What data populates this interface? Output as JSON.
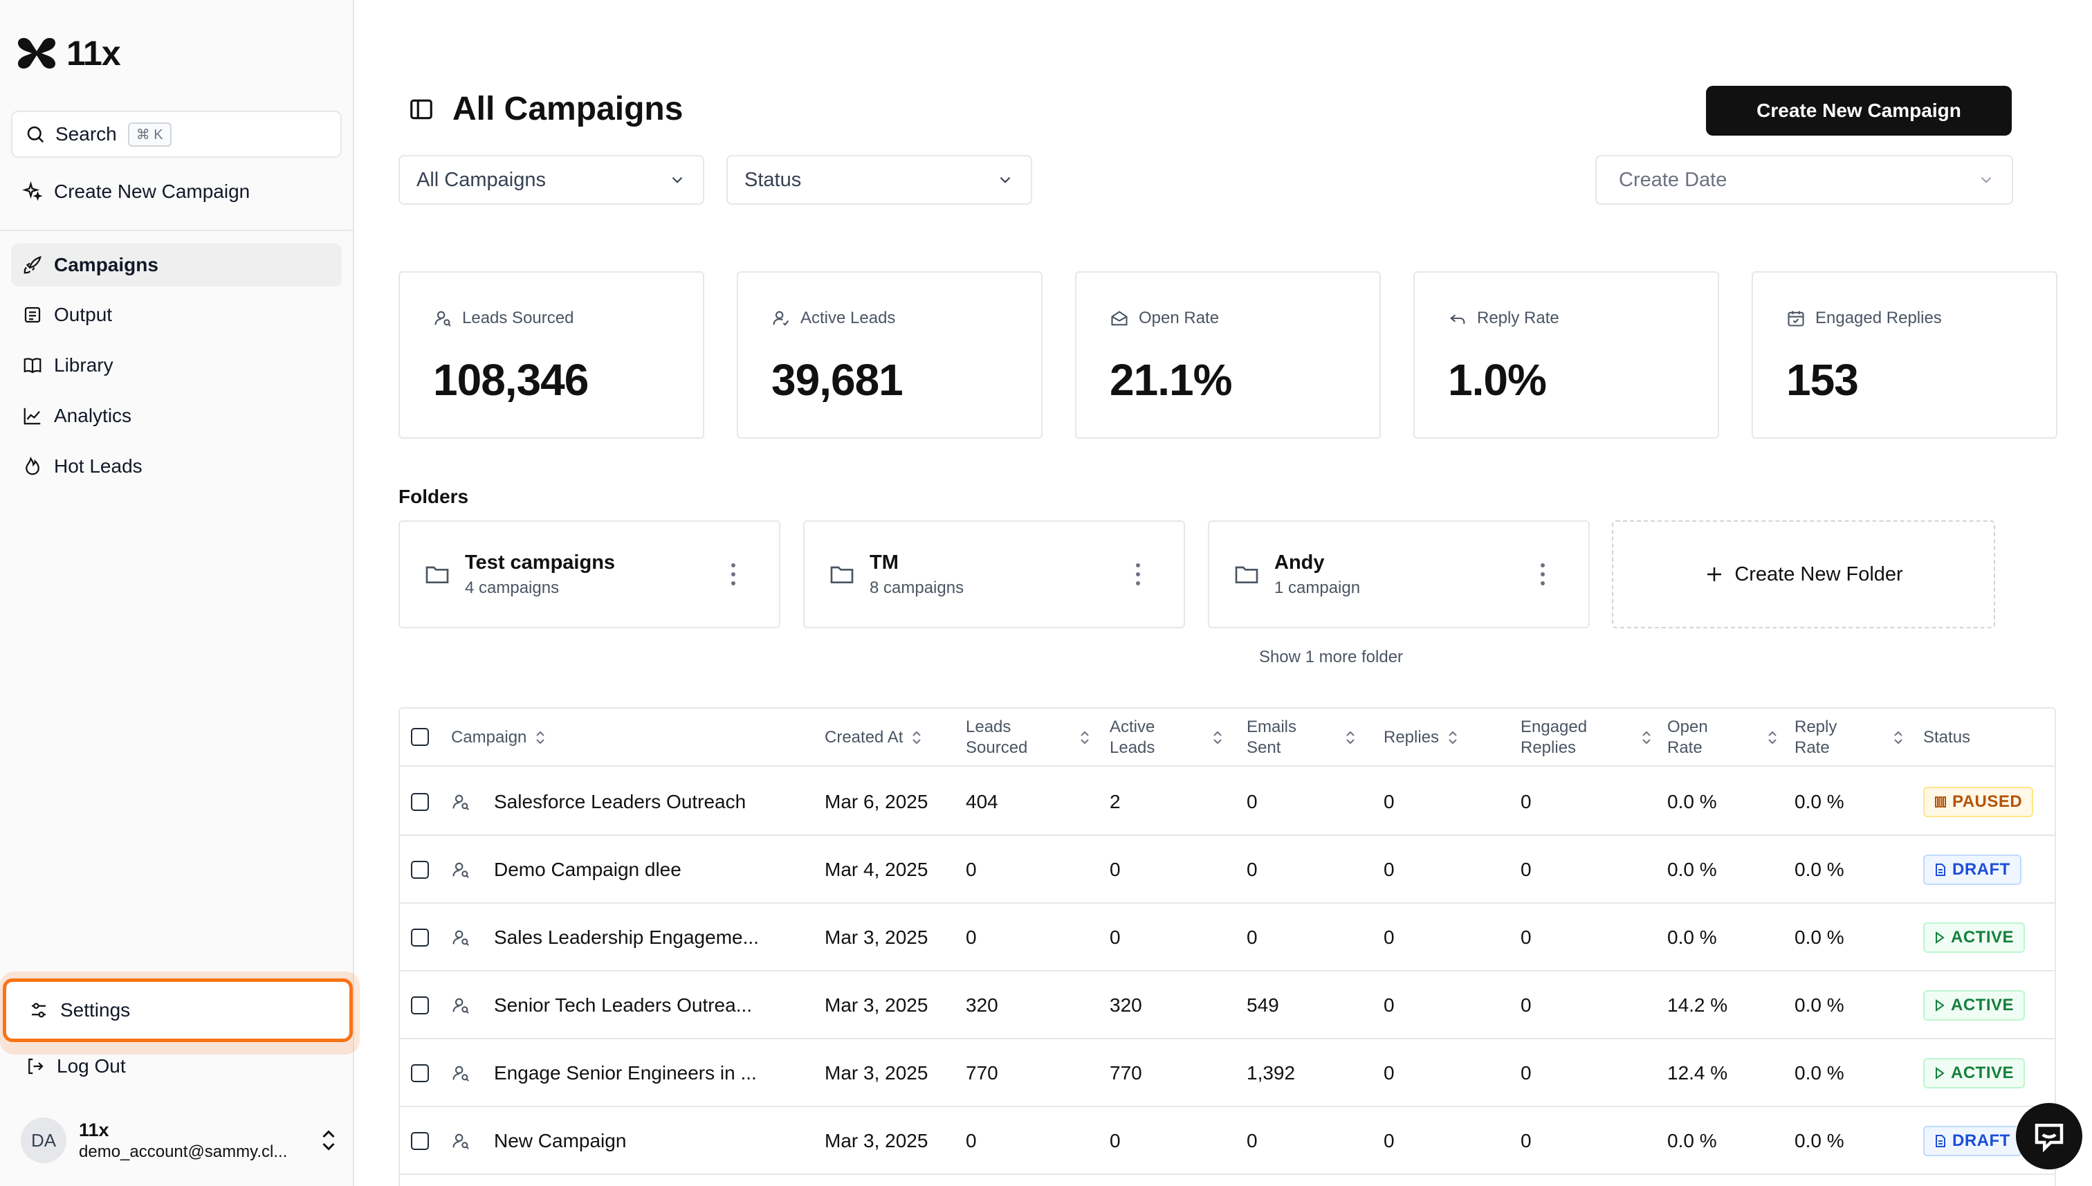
{
  "app": {
    "brand": "11x"
  },
  "sidebar": {
    "search_label": "Search",
    "search_shortcut": "⌘ K",
    "create_campaign": "Create New Campaign",
    "nav": [
      {
        "label": "Campaigns",
        "icon": "rocket-icon",
        "active": true
      },
      {
        "label": "Output",
        "icon": "document-icon"
      },
      {
        "label": "Library",
        "icon": "book-icon"
      },
      {
        "label": "Analytics",
        "icon": "line-chart-icon"
      },
      {
        "label": "Hot Leads",
        "icon": "flame-icon"
      }
    ],
    "settings": "Settings",
    "logout": "Log Out",
    "user": {
      "initials": "DA",
      "name": "11x",
      "email": "demo_account@sammy.cl..."
    }
  },
  "header": {
    "title": "All Campaigns",
    "create_button": "Create New Campaign",
    "filters": {
      "campaigns": "All Campaigns",
      "status": "Status",
      "date": "Create Date"
    }
  },
  "stats": [
    {
      "label": "Leads Sourced",
      "value": "108,346",
      "icon": "user-search-icon"
    },
    {
      "label": "Active Leads",
      "value": "39,681",
      "icon": "user-check-icon"
    },
    {
      "label": "Open Rate",
      "value": "21.1%",
      "icon": "mail-open-icon"
    },
    {
      "label": "Reply Rate",
      "value": "1.0%",
      "icon": "reply-icon"
    },
    {
      "label": "Engaged Replies",
      "value": "153",
      "icon": "calendar-check-icon"
    }
  ],
  "folders": {
    "title": "Folders",
    "items": [
      {
        "name": "Test campaigns",
        "count": "4 campaigns"
      },
      {
        "name": "TM",
        "count": "8 campaigns"
      },
      {
        "name": "Andy",
        "count": "1 campaign"
      }
    ],
    "create_label": "Create New Folder",
    "show_more": "Show 1 more folder"
  },
  "table": {
    "columns": {
      "campaign": "Campaign",
      "created_at": "Created At",
      "leads_sourced": [
        "Leads",
        "Sourced"
      ],
      "active_leads": [
        "Active",
        "Leads"
      ],
      "emails_sent": [
        "Emails",
        "Sent"
      ],
      "replies": "Replies",
      "engaged_replies": [
        "Engaged",
        "Replies"
      ],
      "open_rate": [
        "Open",
        "Rate"
      ],
      "reply_rate": [
        "Reply",
        "Rate"
      ],
      "status": "Status"
    },
    "rows": [
      {
        "name": "Salesforce Leaders Outreach",
        "created": "Mar 6, 2025",
        "leads": "404",
        "active": "2",
        "emails": "0",
        "replies": "0",
        "engaged": "0",
        "open": "0.0 %",
        "reply": "0.0 %",
        "status": "PAUSED"
      },
      {
        "name": "Demo Campaign dlee",
        "created": "Mar 4, 2025",
        "leads": "0",
        "active": "0",
        "emails": "0",
        "replies": "0",
        "engaged": "0",
        "open": "0.0 %",
        "reply": "0.0 %",
        "status": "DRAFT"
      },
      {
        "name": "Sales Leadership Engageme...",
        "created": "Mar 3, 2025",
        "leads": "0",
        "active": "0",
        "emails": "0",
        "replies": "0",
        "engaged": "0",
        "open": "0.0 %",
        "reply": "0.0 %",
        "status": "ACTIVE"
      },
      {
        "name": "Senior Tech Leaders Outrea...",
        "created": "Mar 3, 2025",
        "leads": "320",
        "active": "320",
        "emails": "549",
        "replies": "0",
        "engaged": "0",
        "open": "14.2 %",
        "reply": "0.0 %",
        "status": "ACTIVE"
      },
      {
        "name": "Engage Senior Engineers in ...",
        "created": "Mar 3, 2025",
        "leads": "770",
        "active": "770",
        "emails": "1,392",
        "replies": "0",
        "engaged": "0",
        "open": "12.4 %",
        "reply": "0.0 %",
        "status": "ACTIVE"
      },
      {
        "name": "New Campaign",
        "created": "Mar 3, 2025",
        "leads": "0",
        "active": "0",
        "emails": "0",
        "replies": "0",
        "engaged": "0",
        "open": "0.0 %",
        "reply": "0.0 %",
        "status": "DRAFT"
      }
    ]
  },
  "colors": {
    "accent_highlight": "#f97316",
    "primary": "#111111",
    "paused": "#b45309",
    "draft": "#1d4ed8",
    "active": "#15803d"
  }
}
